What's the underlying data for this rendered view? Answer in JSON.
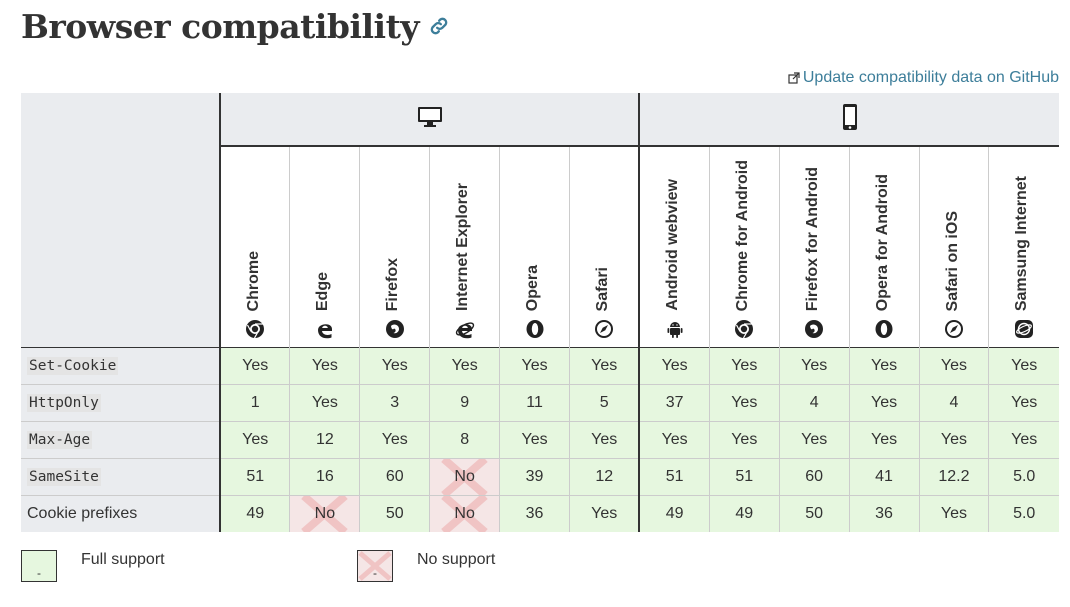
{
  "heading": {
    "title": "Browser compatibility"
  },
  "github_link": {
    "label": "Update compatibility data on GitHub"
  },
  "platforms": [
    {
      "name": "desktop",
      "icon": "desktop-icon"
    },
    {
      "name": "mobile",
      "icon": "mobile-icon"
    }
  ],
  "browsers": [
    {
      "name": "Chrome",
      "icon": "chrome-icon"
    },
    {
      "name": "Edge",
      "icon": "edge-icon"
    },
    {
      "name": "Firefox",
      "icon": "firefox-icon"
    },
    {
      "name": "Internet Explorer",
      "icon": "internet-explorer-icon"
    },
    {
      "name": "Opera",
      "icon": "opera-icon"
    },
    {
      "name": "Safari",
      "icon": "safari-icon"
    },
    {
      "name": "Android webview",
      "icon": "android-icon"
    },
    {
      "name": "Chrome for Android",
      "icon": "chrome-icon"
    },
    {
      "name": "Firefox for Android",
      "icon": "firefox-icon"
    },
    {
      "name": "Opera for Android",
      "icon": "opera-icon"
    },
    {
      "name": "Safari on iOS",
      "icon": "safari-icon"
    },
    {
      "name": "Samsung Internet",
      "icon": "samsung-internet-icon"
    }
  ],
  "features": [
    {
      "name": "Set-Cookie",
      "code": true,
      "values": [
        "Yes",
        "Yes",
        "Yes",
        "Yes",
        "Yes",
        "Yes",
        "Yes",
        "Yes",
        "Yes",
        "Yes",
        "Yes",
        "Yes"
      ],
      "support": [
        "yes",
        "yes",
        "yes",
        "yes",
        "yes",
        "yes",
        "yes",
        "yes",
        "yes",
        "yes",
        "yes",
        "yes"
      ]
    },
    {
      "name": "HttpOnly",
      "code": true,
      "values": [
        "1",
        "Yes",
        "3",
        "9",
        "11",
        "5",
        "37",
        "Yes",
        "4",
        "Yes",
        "4",
        "Yes"
      ],
      "support": [
        "yes",
        "yes",
        "yes",
        "yes",
        "yes",
        "yes",
        "yes",
        "yes",
        "yes",
        "yes",
        "yes",
        "yes"
      ]
    },
    {
      "name": "Max-Age",
      "code": true,
      "values": [
        "Yes",
        "12",
        "Yes",
        "8",
        "Yes",
        "Yes",
        "Yes",
        "Yes",
        "Yes",
        "Yes",
        "Yes",
        "Yes"
      ],
      "support": [
        "yes",
        "yes",
        "yes",
        "yes",
        "yes",
        "yes",
        "yes",
        "yes",
        "yes",
        "yes",
        "yes",
        "yes"
      ]
    },
    {
      "name": "SameSite",
      "code": true,
      "values": [
        "51",
        "16",
        "60",
        "No",
        "39",
        "12",
        "51",
        "51",
        "60",
        "41",
        "12.2",
        "5.0"
      ],
      "support": [
        "yes",
        "yes",
        "yes",
        "no",
        "yes",
        "yes",
        "yes",
        "yes",
        "yes",
        "yes",
        "yes",
        "yes"
      ]
    },
    {
      "name": "Cookie prefixes",
      "code": false,
      "values": [
        "49",
        "No",
        "50",
        "No",
        "36",
        "Yes",
        "49",
        "49",
        "50",
        "36",
        "Yes",
        "5.0"
      ],
      "support": [
        "yes",
        "no",
        "yes",
        "no",
        "yes",
        "yes",
        "yes",
        "yes",
        "yes",
        "yes",
        "yes",
        "yes"
      ]
    }
  ],
  "legend": [
    {
      "label": "Full support",
      "type": "yes",
      "mark": "-"
    },
    {
      "label": "No support",
      "type": "no",
      "mark": "-"
    }
  ],
  "colors": {
    "yes": "#e6f7df",
    "no": "#f5e6e6",
    "link": "#3d7e9a",
    "header_bg": "#eaecef"
  }
}
